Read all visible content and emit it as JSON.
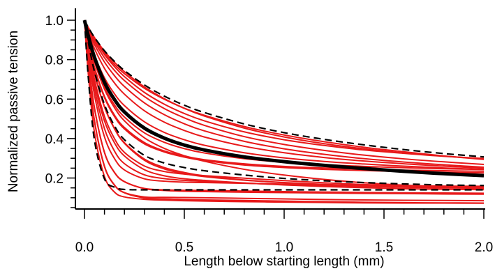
{
  "chart_data": {
    "type": "line",
    "xlabel": "Length below starting length (mm)",
    "ylabel": "Normalized passive tension",
    "xlim": [
      0.0,
      2.0
    ],
    "ylim": [
      0.05,
      1.06
    ],
    "x_ticks": [
      "0.0",
      "0.5",
      "1.0",
      "1.5",
      "2.0"
    ],
    "y_ticks": [
      "0.2",
      "0.4",
      "0.6",
      "0.8",
      "1.0"
    ],
    "x": [
      0.0,
      0.02,
      0.05,
      0.1,
      0.15,
      0.2,
      0.3,
      0.4,
      0.5,
      0.6,
      0.8,
      1.0,
      1.2,
      1.4,
      1.6,
      1.8,
      2.0
    ],
    "series": [
      {
        "style": "red",
        "values": [
          1.0,
          0.962,
          0.912,
          0.843,
          0.787,
          0.739,
          0.662,
          0.602,
          0.553,
          0.514,
          0.453,
          0.408,
          0.374,
          0.348,
          0.327,
          0.311,
          0.297
        ]
      },
      {
        "style": "red",
        "values": [
          1.0,
          0.959,
          0.905,
          0.833,
          0.776,
          0.729,
          0.655,
          0.599,
          0.554,
          0.518,
          0.461,
          0.418,
          0.384,
          0.356,
          0.333,
          0.312,
          0.294
        ]
      },
      {
        "style": "red",
        "values": [
          1.0,
          0.958,
          0.902,
          0.826,
          0.765,
          0.714,
          0.634,
          0.574,
          0.527,
          0.49,
          0.434,
          0.394,
          0.365,
          0.342,
          0.325,
          0.31,
          0.299
        ]
      },
      {
        "style": "red",
        "values": [
          1.0,
          0.952,
          0.891,
          0.81,
          0.746,
          0.694,
          0.613,
          0.552,
          0.505,
          0.467,
          0.41,
          0.37,
          0.34,
          0.316,
          0.297,
          0.282,
          0.269
        ]
      },
      {
        "style": "red",
        "values": [
          1.0,
          0.946,
          0.877,
          0.788,
          0.719,
          0.664,
          0.581,
          0.521,
          0.475,
          0.439,
          0.386,
          0.348,
          0.32,
          0.298,
          0.281,
          0.267,
          0.255
        ]
      },
      {
        "style": "red",
        "values": [
          1.0,
          0.936,
          0.856,
          0.756,
          0.682,
          0.625,
          0.541,
          0.483,
          0.441,
          0.408,
          0.361,
          0.328,
          0.304,
          0.286,
          0.272,
          0.26,
          0.25
        ]
      },
      {
        "style": "red",
        "values": [
          1.0,
          0.921,
          0.823,
          0.708,
          0.627,
          0.567,
          0.485,
          0.431,
          0.394,
          0.366,
          0.328,
          0.302,
          0.284,
          0.271,
          0.26,
          0.251,
          0.244
        ]
      },
      {
        "style": "red",
        "values": [
          1.0,
          0.908,
          0.793,
          0.66,
          0.571,
          0.509,
          0.429,
          0.381,
          0.349,
          0.327,
          0.298,
          0.28,
          0.268,
          0.259,
          0.252,
          0.247,
          0.243
        ]
      },
      {
        "style": "red",
        "values": [
          1.0,
          0.895,
          0.762,
          0.614,
          0.519,
          0.456,
          0.38,
          0.337,
          0.311,
          0.293,
          0.272,
          0.259,
          0.251,
          0.245,
          0.24,
          0.237,
          0.234
        ]
      },
      {
        "style": "red",
        "values": [
          1.0,
          0.893,
          0.758,
          0.608,
          0.512,
          0.449,
          0.373,
          0.332,
          0.306,
          0.288,
          0.266,
          0.253,
          0.244,
          0.238,
          0.233,
          0.229,
          0.226
        ]
      },
      {
        "style": "red",
        "values": [
          1.0,
          0.906,
          0.789,
          0.651,
          0.557,
          0.49,
          0.404,
          0.35,
          0.313,
          0.285,
          0.244,
          0.215,
          0.193,
          0.176,
          0.164,
          0.156,
          0.152
        ]
      },
      {
        "style": "red",
        "values": [
          1.0,
          0.883,
          0.733,
          0.562,
          0.452,
          0.379,
          0.296,
          0.253,
          0.228,
          0.211,
          0.19,
          0.176,
          0.166,
          0.158,
          0.153,
          0.15,
          0.148
        ]
      },
      {
        "style": "red",
        "values": [
          1.0,
          0.867,
          0.7,
          0.513,
          0.4,
          0.33,
          0.261,
          0.233,
          0.22,
          0.212,
          0.199,
          0.187,
          0.176,
          0.167,
          0.161,
          0.157,
          0.155
        ]
      },
      {
        "style": "red",
        "values": [
          1.0,
          0.843,
          0.654,
          0.451,
          0.337,
          0.273,
          0.216,
          0.197,
          0.188,
          0.183,
          0.174,
          0.167,
          0.162,
          0.158,
          0.155,
          0.153,
          0.152
        ]
      },
      {
        "style": "red",
        "values": [
          1.0,
          0.826,
          0.621,
          0.409,
          0.299,
          0.241,
          0.196,
          0.184,
          0.179,
          0.177,
          0.173,
          0.169,
          0.166,
          0.163,
          0.161,
          0.159,
          0.158
        ]
      },
      {
        "style": "red",
        "values": [
          1.0,
          0.881,
          0.731,
          0.56,
          0.45,
          0.376,
          0.29,
          0.246,
          0.222,
          0.207,
          0.189,
          0.177,
          0.168,
          0.161,
          0.156,
          0.152,
          0.15
        ]
      },
      {
        "style": "red",
        "values": [
          1.0,
          0.791,
          0.556,
          0.33,
          0.228,
          0.181,
          0.147,
          0.14,
          0.138,
          0.137,
          0.134,
          0.131,
          0.129,
          0.127,
          0.125,
          0.124,
          0.123
        ]
      },
      {
        "style": "red",
        "values": [
          1.0,
          0.789,
          0.553,
          0.33,
          0.229,
          0.182,
          0.146,
          0.137,
          0.133,
          0.131,
          0.128,
          0.126,
          0.124,
          0.122,
          0.121,
          0.119,
          0.118
        ]
      },
      {
        "style": "red",
        "values": [
          1.0,
          0.857,
          0.682,
          0.49,
          0.379,
          0.312,
          0.242,
          0.211,
          0.196,
          0.188,
          0.175,
          0.165,
          0.157,
          0.151,
          0.146,
          0.143,
          0.141
        ]
      },
      {
        "style": "red",
        "values": [
          1.0,
          0.752,
          0.488,
          0.258,
          0.164,
          0.126,
          0.104,
          0.102,
          0.101,
          0.1,
          0.097,
          0.094,
          0.091,
          0.089,
          0.087,
          0.086,
          0.085
        ]
      },
      {
        "style": "red",
        "values": [
          1.0,
          0.755,
          0.492,
          0.261,
          0.165,
          0.125,
          0.099,
          0.094,
          0.091,
          0.089,
          0.086,
          0.083,
          0.08,
          0.077,
          0.075,
          0.074,
          0.073
        ]
      },
      {
        "style": "red",
        "values": [
          1.0,
          0.718,
          0.431,
          0.208,
          0.129,
          0.104,
          0.092,
          0.088,
          0.085,
          0.083,
          0.08,
          0.078,
          0.076,
          0.074,
          0.073,
          0.073,
          0.072
        ]
      },
      {
        "style": "dashed",
        "values": [
          1.0,
          0.962,
          0.913,
          0.845,
          0.791,
          0.745,
          0.672,
          0.615,
          0.569,
          0.532,
          0.474,
          0.43,
          0.396,
          0.368,
          0.344,
          0.324,
          0.307
        ]
      },
      {
        "style": "dashed",
        "values": [
          1.0,
          0.884,
          0.74,
          0.573,
          0.465,
          0.394,
          0.315,
          0.276,
          0.253,
          0.237,
          0.215,
          0.198,
          0.186,
          0.177,
          0.17,
          0.165,
          0.162
        ]
      },
      {
        "style": "dashed",
        "values": [
          1.0,
          0.699,
          0.391,
          0.196,
          0.153,
          0.142,
          0.14,
          0.14,
          0.14,
          0.14,
          0.14,
          0.14,
          0.14,
          0.14,
          0.14,
          0.14,
          0.14
        ]
      },
      {
        "style": "mean",
        "values": [
          1.0,
          0.917,
          0.812,
          0.685,
          0.598,
          0.535,
          0.453,
          0.402,
          0.367,
          0.342,
          0.307,
          0.283,
          0.264,
          0.248,
          0.234,
          0.222,
          0.212
        ]
      }
    ],
    "colors": {
      "red": "#e8191a",
      "black": "#000000"
    }
  }
}
